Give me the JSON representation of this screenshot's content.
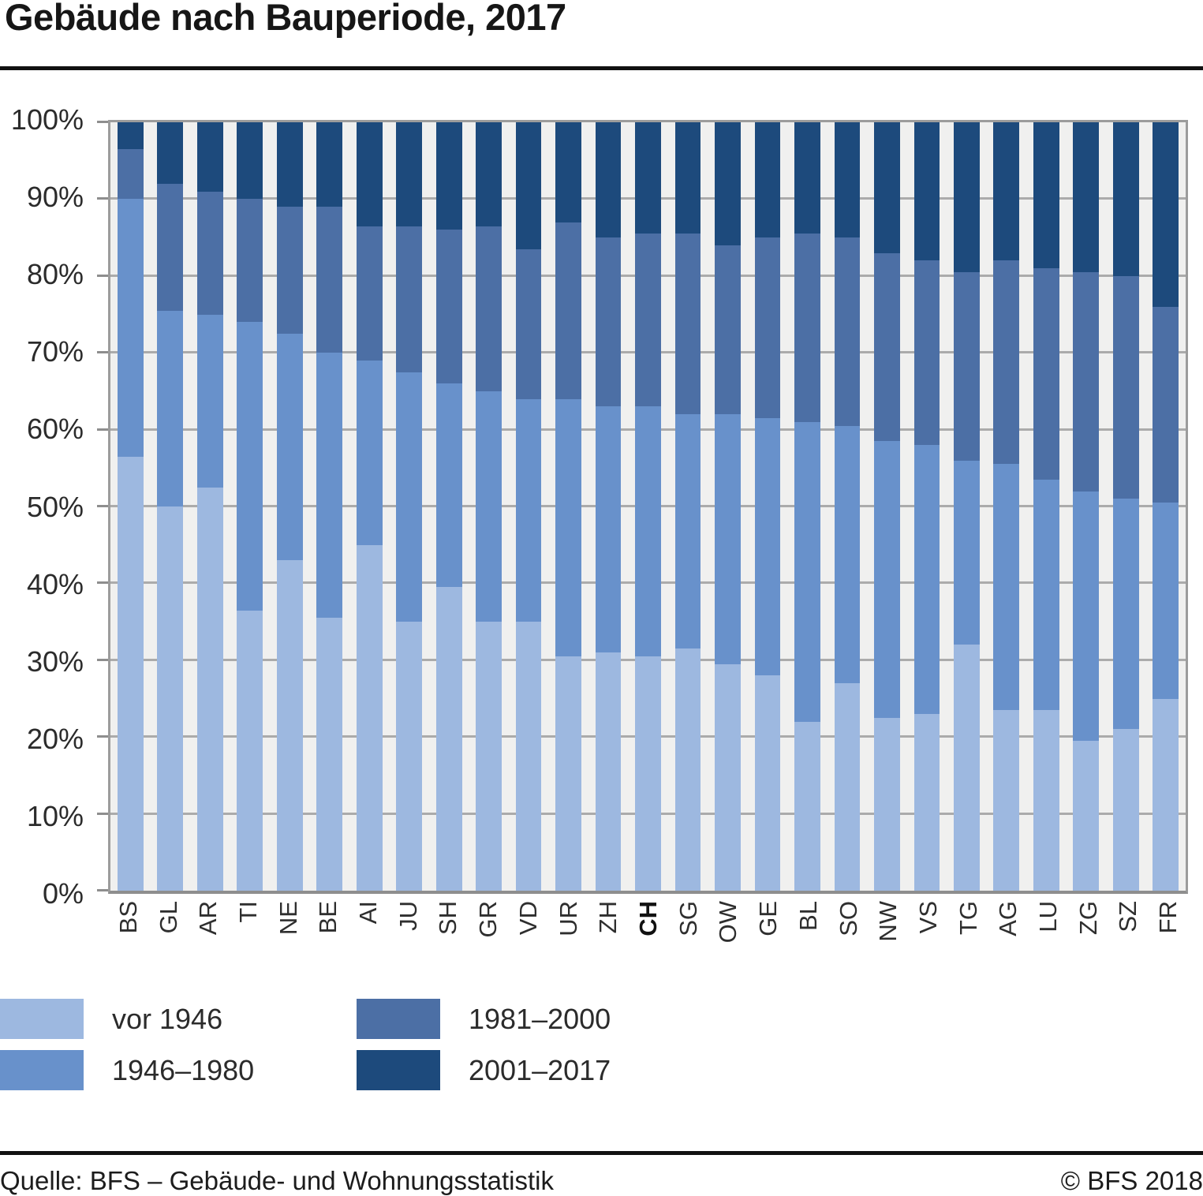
{
  "title": "Gebäude nach Bauperiode, 2017",
  "footer": {
    "source": "Quelle: BFS – Gebäude- und Wohnungsstatistik",
    "copyright": "© BFS 2018"
  },
  "colors": {
    "vor_1946": "#9db8e0",
    "p1946_1980": "#6891cb",
    "p1981_2000": "#4c6fa5",
    "p2001_2017": "#1d4a7c",
    "plot_background": "#f0f0ef",
    "gridline": "#ababab",
    "frame": "#9c9c9c"
  },
  "legend": [
    {
      "label": "vor 1946",
      "color": "#9db8e0"
    },
    {
      "label": "1946–1980",
      "color": "#6891cb"
    },
    {
      "label": "1981–2000",
      "color": "#4c6fa5"
    },
    {
      "label": "2001–2017",
      "color": "#1d4a7c"
    }
  ],
  "chart_data": {
    "type": "bar",
    "stacked": true,
    "title": "Gebäude nach Bauperiode, 2017",
    "xlabel": "",
    "ylabel": "",
    "ylim": [
      0,
      100
    ],
    "grid": true,
    "legend_position": "bottom",
    "unit": "percent",
    "yticks": [
      "0%",
      "10%",
      "20%",
      "30%",
      "40%",
      "50%",
      "60%",
      "70%",
      "80%",
      "90%",
      "100%"
    ],
    "categories": [
      "BS",
      "GL",
      "AR",
      "TI",
      "NE",
      "BE",
      "AI",
      "JU",
      "SH",
      "GR",
      "VD",
      "UR",
      "ZH",
      "CH",
      "SG",
      "OW",
      "GE",
      "BL",
      "SO",
      "NW",
      "VS",
      "TG",
      "AG",
      "LU",
      "ZG",
      "SZ",
      "FR"
    ],
    "bold_category": "CH",
    "series": [
      {
        "name": "vor 1946",
        "color": "#9db8e0",
        "values": [
          56.5,
          50,
          52.5,
          36.5,
          43,
          35.5,
          45,
          35,
          39.5,
          35,
          35,
          30.5,
          31,
          30.5,
          31.5,
          29.5,
          28,
          22,
          27,
          22.5,
          23,
          32,
          23.5,
          23.5,
          19.5,
          21,
          25
        ]
      },
      {
        "name": "1946–1980",
        "color": "#6891cb",
        "values": [
          33.5,
          25.5,
          22.5,
          37.5,
          29.5,
          34.5,
          24,
          32.5,
          26.5,
          30,
          29,
          33.5,
          32,
          32.5,
          30.5,
          32.5,
          33.5,
          39,
          33.5,
          36,
          35,
          24,
          32,
          30,
          32.5,
          30,
          25.5
        ]
      },
      {
        "name": "1981–2000",
        "color": "#4c6fa5",
        "values": [
          6.5,
          16.5,
          16,
          16,
          16.5,
          19,
          17.5,
          19,
          20,
          21.5,
          19.5,
          23,
          22,
          22.5,
          23.5,
          22,
          23.5,
          24.5,
          24.5,
          24.5,
          24,
          24.5,
          26.5,
          27.5,
          28.5,
          29,
          25.5
        ]
      },
      {
        "name": "2001–2017",
        "color": "#1d4a7c",
        "values": [
          3.5,
          8,
          9,
          10,
          11,
          11,
          13.5,
          13.5,
          14,
          13.5,
          16.5,
          13,
          15,
          14.5,
          14.5,
          16,
          15,
          14.5,
          15,
          17,
          18,
          19.5,
          18,
          19,
          19.5,
          20,
          24
        ]
      }
    ]
  }
}
